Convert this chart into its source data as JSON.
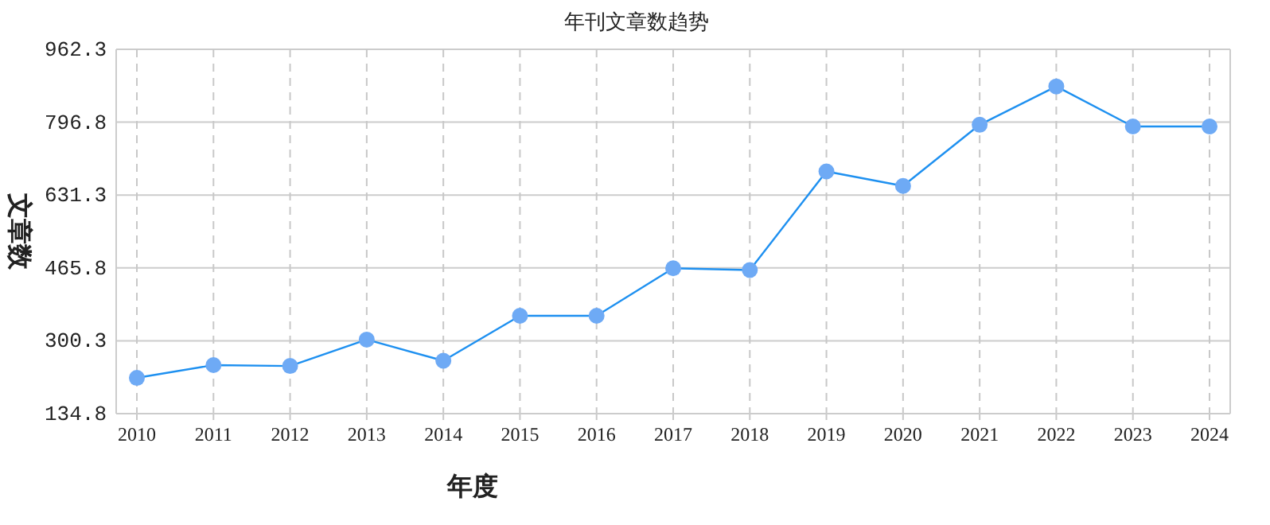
{
  "chart_data": {
    "type": "line",
    "title": "年刊文章数趋势",
    "xlabel": "年度",
    "ylabel": "文章数",
    "categories": [
      "2010",
      "2011",
      "2012",
      "2013",
      "2014",
      "2015",
      "2016",
      "2017",
      "2018",
      "2019",
      "2020",
      "2021",
      "2022",
      "2023",
      "2024"
    ],
    "series": [
      {
        "color": "#1e90f0",
        "values": [
          216,
          245,
          243,
          303,
          255,
          357,
          357,
          465,
          461,
          685,
          652,
          791,
          878,
          787,
          787
        ]
      }
    ],
    "ylim": [
      134.8,
      962.3
    ],
    "yticks": [
      134.8,
      300.3,
      465.8,
      631.3,
      796.8,
      962.3
    ],
    "grid": true,
    "marker": "circle",
    "line_style": "solid"
  }
}
